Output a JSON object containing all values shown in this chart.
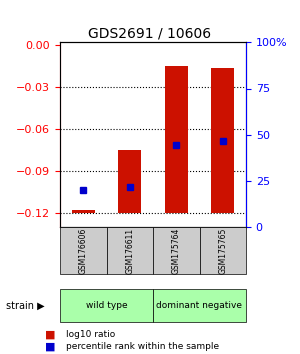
{
  "title": "GDS2691 / 10606",
  "samples": [
    "GSM176606",
    "GSM176611",
    "GSM175764",
    "GSM175765"
  ],
  "bar_bottoms": [
    -0.12,
    -0.12,
    -0.12,
    -0.12
  ],
  "bar_tops": [
    -0.118,
    -0.075,
    -0.015,
    -0.016
  ],
  "percentile_rank": [
    20,
    22,
    45,
    47
  ],
  "ylim_left": [
    -0.13,
    0.002
  ],
  "ylim_right": [
    0,
    100
  ],
  "yticks_left": [
    0,
    -0.03,
    -0.06,
    -0.09,
    -0.12
  ],
  "yticks_right": [
    0,
    25,
    50,
    75,
    100
  ],
  "groups": [
    {
      "label": "wild type",
      "samples": [
        0,
        1
      ],
      "color": "#aaffaa"
    },
    {
      "label": "dominant negative",
      "samples": [
        2,
        3
      ],
      "color": "#aaffaa"
    }
  ],
  "bar_color": "#cc1100",
  "square_color": "#0000cc",
  "bar_width": 0.5,
  "background_color": "#ffffff",
  "plot_bg_color": "#ffffff",
  "label_box_color": "#cccccc",
  "figsize": [
    3.0,
    3.54
  ],
  "dpi": 100
}
